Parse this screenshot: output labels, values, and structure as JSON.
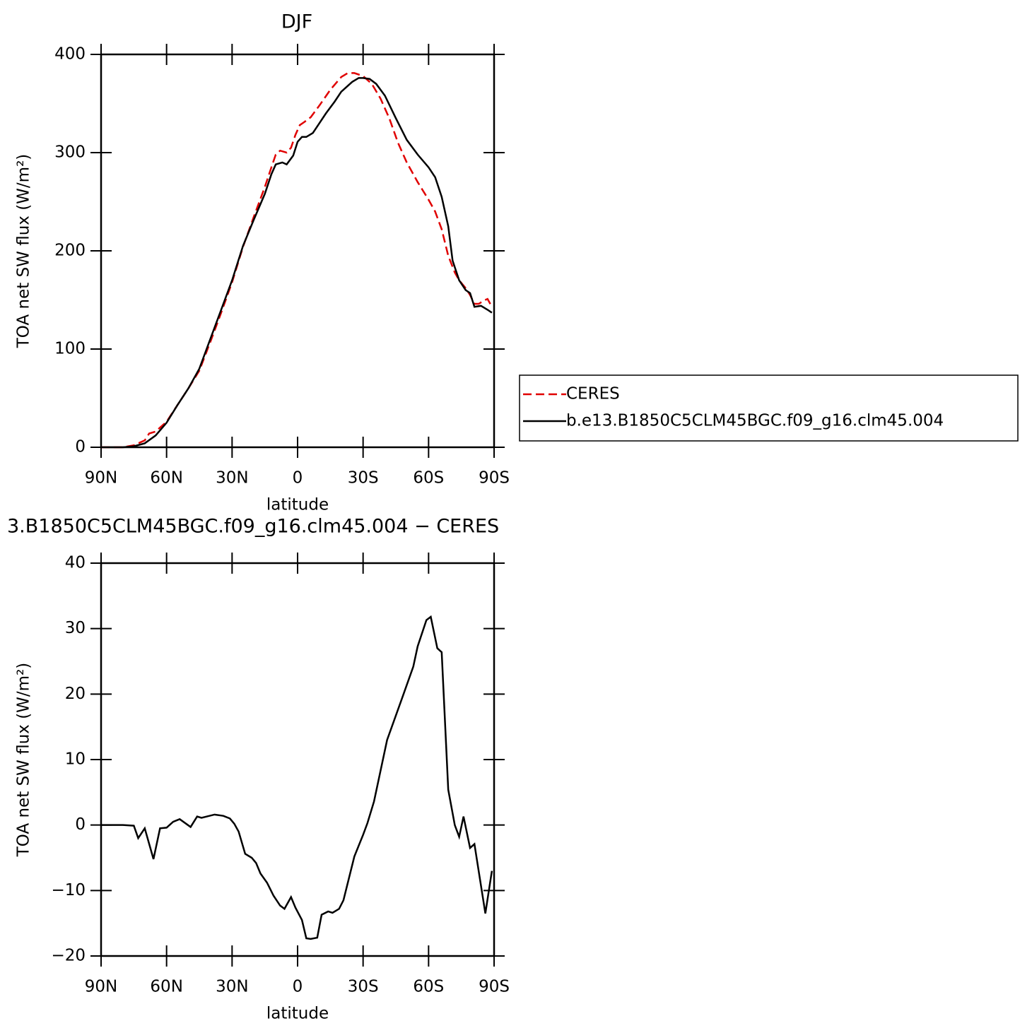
{
  "chart_data": [
    {
      "type": "line",
      "title": "DJF",
      "xlabel": "latitude",
      "ylabel": "TOA net SW flux (W/m²)",
      "xlim": [
        90,
        -90
      ],
      "xticks": [
        {
          "value": 90,
          "label": "90N"
        },
        {
          "value": 60,
          "label": "60N"
        },
        {
          "value": 30,
          "label": "30N"
        },
        0,
        {
          "value": -30,
          "label": "30S"
        },
        {
          "value": -60,
          "label": "60S"
        },
        {
          "value": -90,
          "label": "90S"
        }
      ],
      "ylim": [
        0,
        400
      ],
      "yticks": [
        0,
        100,
        200,
        300,
        400
      ],
      "legend": "right",
      "series": [
        {
          "name": "CERES",
          "color": "#e00000",
          "dash": true,
          "x": [
            90,
            85,
            80,
            75,
            72,
            70,
            68,
            65,
            60,
            55,
            50,
            45,
            40,
            35,
            30,
            25,
            20,
            15,
            12,
            10,
            8,
            5,
            3,
            1,
            -1,
            -3,
            -6,
            -10,
            -15,
            -20,
            -23,
            -26,
            -30,
            -34,
            -38,
            -42,
            -46,
            -50,
            -55,
            -60,
            -63,
            -66,
            -69,
            -72,
            -74,
            -77,
            -79,
            -81,
            -83,
            -85,
            -87,
            -89
          ],
          "values": [
            0,
            0,
            0,
            2,
            5,
            7,
            14,
            16,
            26,
            43,
            60,
            78,
            107,
            137,
            168,
            204,
            235,
            265,
            285,
            298,
            302,
            300,
            305,
            318,
            328,
            331,
            336,
            348,
            364,
            377,
            381,
            381,
            378,
            370,
            355,
            335,
            310,
            290,
            270,
            252,
            240,
            222,
            195,
            178,
            170,
            162,
            155,
            146,
            146,
            149,
            151,
            143
          ]
        },
        {
          "name": "b.e13.B1850C5CLM45BGC.f09_g16.clm45.004",
          "color": "#000000",
          "dash": false,
          "x": [
            90,
            85,
            80,
            75,
            70,
            65,
            60,
            55,
            50,
            45,
            40,
            35,
            30,
            25,
            20,
            15,
            12,
            10,
            7,
            5,
            2,
            0,
            -2,
            -4,
            -7,
            -10,
            -13,
            -17,
            -20,
            -25,
            -28,
            -30,
            -33,
            -36,
            -40,
            -45,
            -50,
            -55,
            -60,
            -63,
            -66,
            -69,
            -71,
            -74,
            -77,
            -79,
            -81,
            -84,
            -87,
            -89
          ],
          "values": [
            0,
            0,
            0,
            1,
            4,
            12,
            25,
            43,
            60,
            80,
            110,
            140,
            170,
            205,
            232,
            258,
            278,
            288,
            290,
            288,
            297,
            311,
            316,
            316,
            320,
            330,
            340,
            352,
            362,
            372,
            376,
            376,
            375,
            370,
            358,
            335,
            313,
            298,
            285,
            275,
            255,
            225,
            190,
            170,
            160,
            157,
            143,
            144,
            140,
            137
          ]
        }
      ]
    },
    {
      "type": "line",
      "title": "3.B1850C5CLM45BGC.f09_g16.clm45.004 − CERES",
      "xlabel": "latitude",
      "ylabel": "TOA net SW flux (W/m²)",
      "xlim": [
        90,
        -90
      ],
      "xticks": [
        {
          "value": 90,
          "label": "90N"
        },
        {
          "value": 60,
          "label": "60N"
        },
        {
          "value": 30,
          "label": "30N"
        },
        0,
        {
          "value": -30,
          "label": "30S"
        },
        {
          "value": -60,
          "label": "60S"
        },
        {
          "value": -90,
          "label": "90S"
        }
      ],
      "ylim": [
        -20,
        40
      ],
      "yticks": [
        {
          "value": -20,
          "label": "−20"
        },
        {
          "value": -10,
          "label": "−10"
        },
        0,
        10,
        20,
        30,
        40
      ],
      "x": [
        90,
        80,
        75,
        73,
        70,
        66,
        63,
        60,
        57,
        54,
        49,
        46,
        44,
        38,
        34,
        31,
        29,
        27,
        24,
        21,
        19,
        17,
        14,
        11,
        8,
        6,
        3,
        1,
        -2,
        -4,
        -6,
        -9,
        -11,
        -14,
        -16,
        -19,
        -21,
        -26,
        -30,
        -32,
        -35,
        -38,
        -41,
        -48,
        -53,
        -55,
        -59,
        -61,
        -64,
        -66,
        -69,
        -72,
        -74,
        -76,
        -79,
        -81,
        -86,
        -89
      ],
      "series": [
        {
          "color": "#000000",
          "values": [
            0,
            0,
            -0.1,
            -2,
            -0.5,
            -5.2,
            -0.5,
            -0.4,
            0.5,
            0.9,
            -0.3,
            1.3,
            1.1,
            1.6,
            1.4,
            1.0,
            0.2,
            -1.0,
            -4.4,
            -5.0,
            -5.8,
            -7.4,
            -8.8,
            -10.8,
            -12.3,
            -12.8,
            -11.0,
            -12.6,
            -14.5,
            -17.3,
            -17.4,
            -17.2,
            -13.7,
            -13.2,
            -13.4,
            -12.8,
            -11.5,
            -4.8,
            -1.5,
            0.3,
            3.6,
            8.3,
            13.0,
            19.5,
            24.2,
            27.3,
            31.3,
            31.8,
            27.0,
            26.4,
            5.4,
            0.0,
            -1.8,
            1.3,
            -3.5,
            -2.9,
            -13.5,
            -7.0
          ]
        }
      ]
    }
  ]
}
